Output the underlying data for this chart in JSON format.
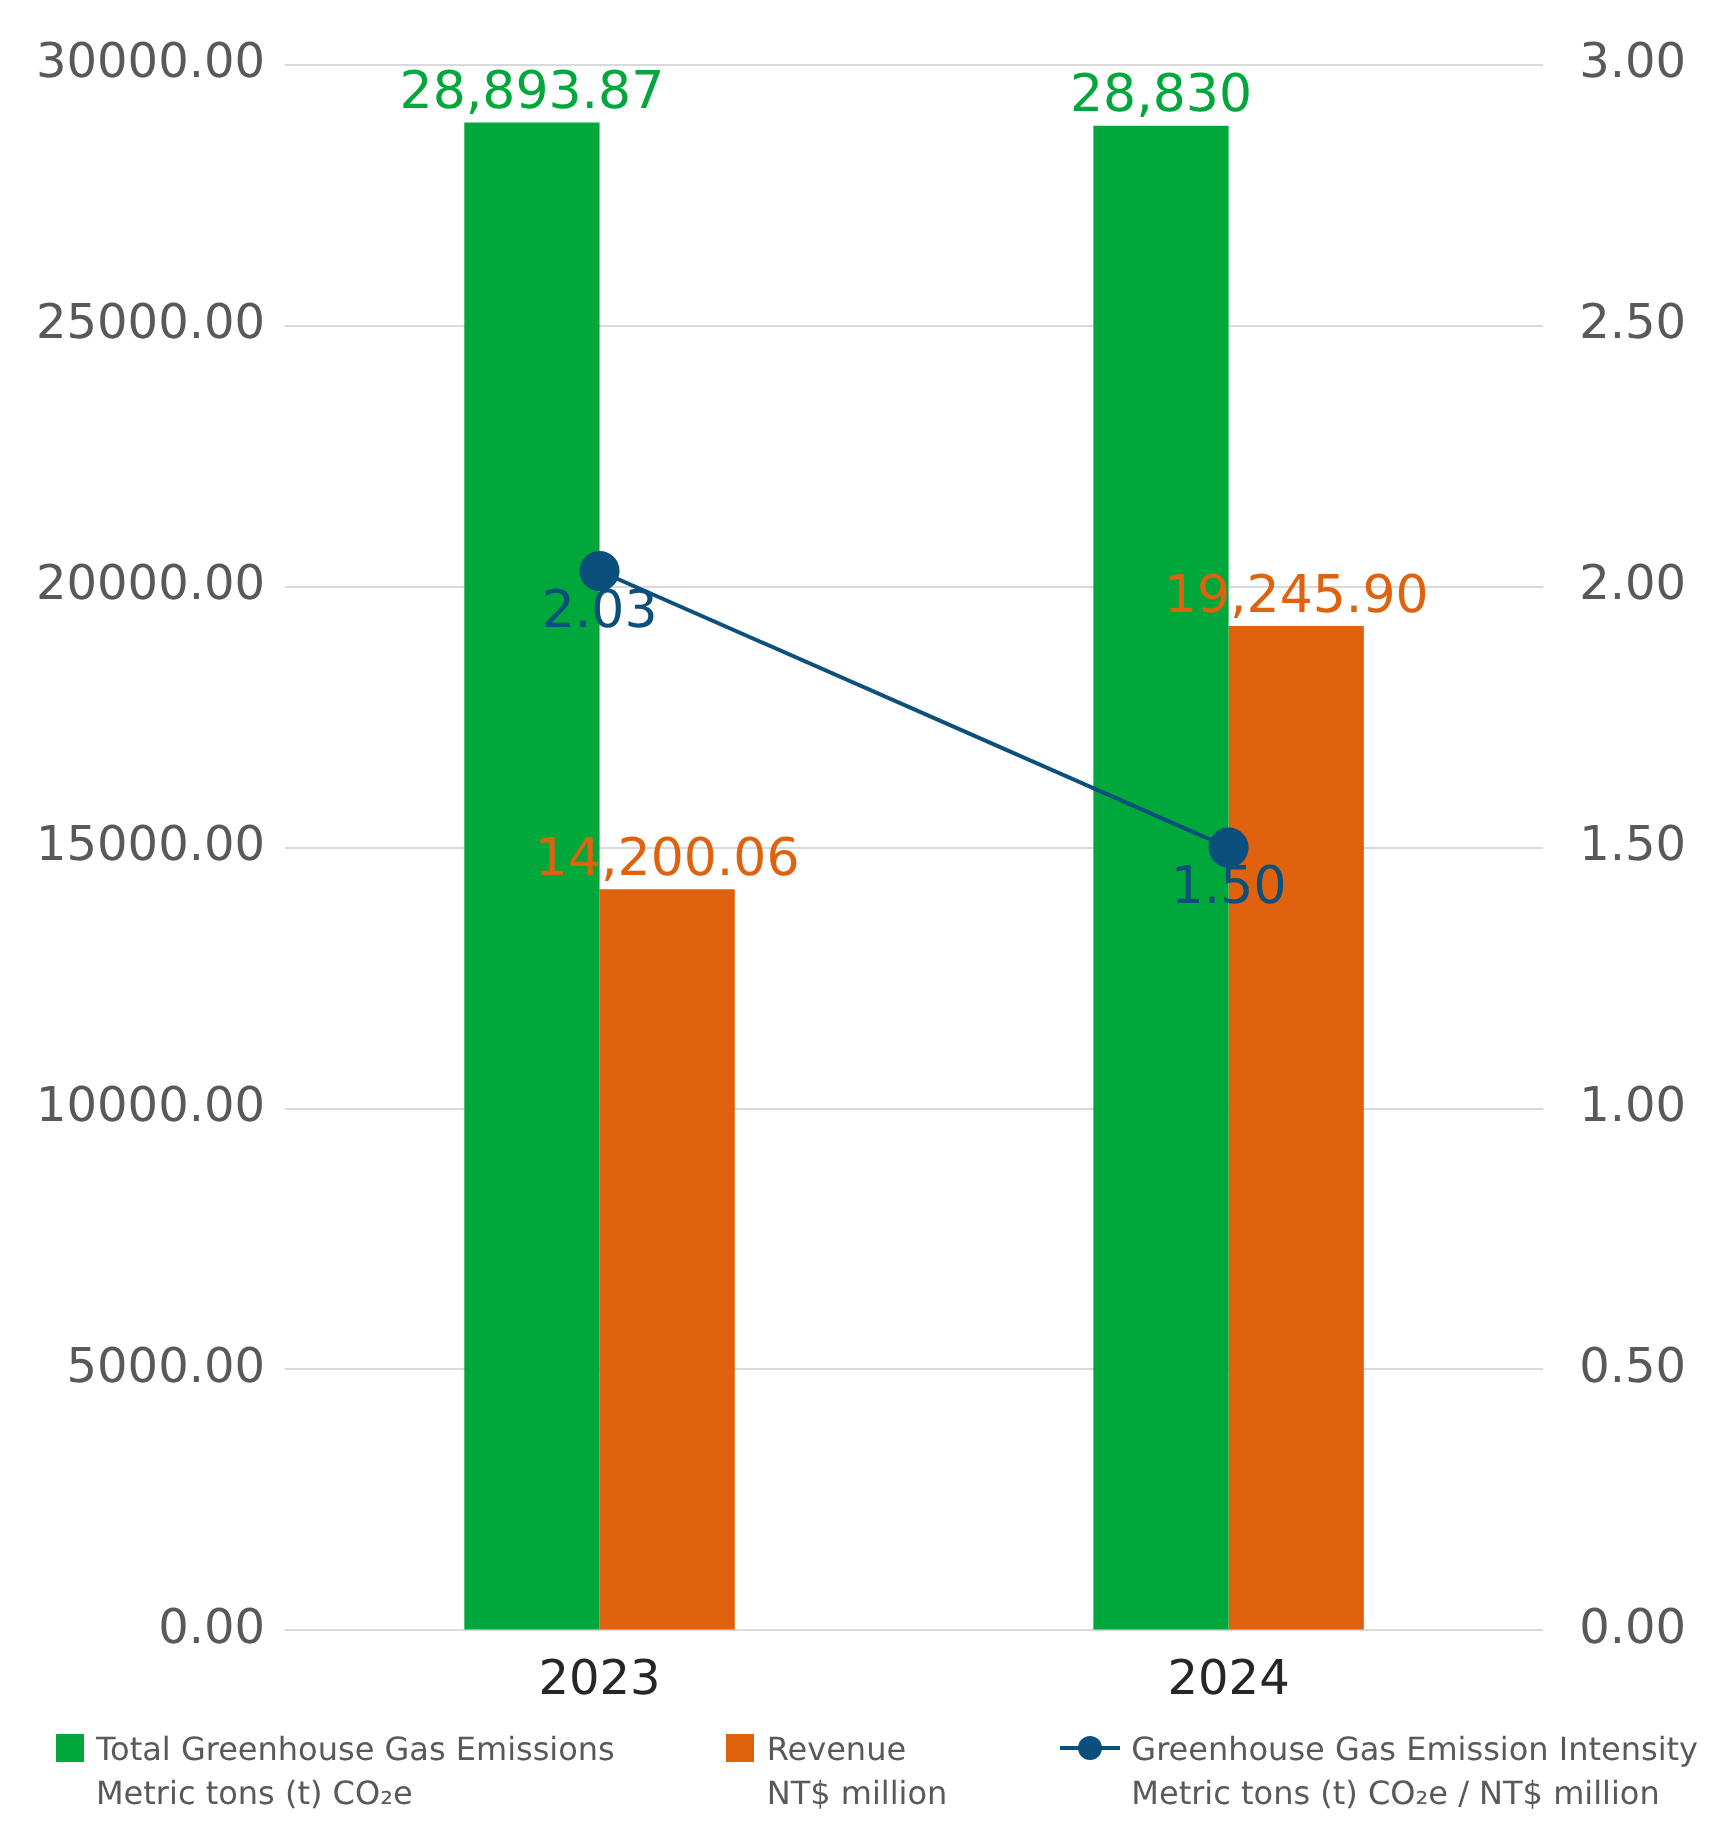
{
  "chart_data": {
    "type": "bar",
    "categories": [
      "2023",
      "2024"
    ],
    "series": [
      {
        "name": "Total Greenhouse Gas Emissions\nMetric tons (t) CO₂e",
        "color": "#00a83c",
        "values": [
          28893.87,
          28830
        ],
        "value_labels": [
          "28,893.87",
          "28,830"
        ]
      },
      {
        "name": "Revenue\nNT$ million",
        "color": "#e0620f",
        "values": [
          14200.06,
          19245.9
        ],
        "value_labels": [
          "14,200.06",
          "19,245.90"
        ]
      },
      {
        "name": "Greenhouse Gas Emission Intensity\nMetric tons (t) CO₂e / NT$ million",
        "type": "line",
        "axis": "y2",
        "color": "#0b4f7c",
        "values": [
          2.03,
          1.5
        ],
        "value_labels": [
          "2.03",
          "1.50"
        ]
      }
    ],
    "ylim": [
      0,
      30000
    ],
    "yticks": [
      {
        "value": 0,
        "label": "0.00"
      },
      {
        "value": 5000,
        "label": "5000.00"
      },
      {
        "value": 10000,
        "label": "10000.00"
      },
      {
        "value": 15000,
        "label": "15000.00"
      },
      {
        "value": 20000,
        "label": "20000.00"
      },
      {
        "value": 25000,
        "label": "25000.00"
      },
      {
        "value": 30000,
        "label": "30000.00"
      }
    ],
    "y2lim": [
      0,
      3
    ],
    "y2ticks": [
      {
        "value": 0,
        "label": "0.00"
      },
      {
        "value": 0.5,
        "label": "0.50"
      },
      {
        "value": 1,
        "label": "1.00"
      },
      {
        "value": 1.5,
        "label": "1.50"
      },
      {
        "value": 2,
        "label": "2.00"
      },
      {
        "value": 2.5,
        "label": "2.50"
      },
      {
        "value": 3,
        "label": "3.00"
      }
    ],
    "grid": "y",
    "legend": "bottom",
    "marker": "circle",
    "line_style": "solid"
  }
}
